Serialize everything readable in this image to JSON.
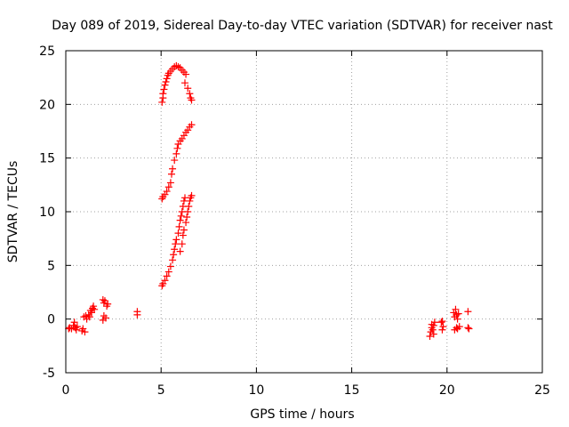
{
  "chart_data": {
    "type": "scatter",
    "title": "Day 089 of 2019, Sidereal Day-to-day VTEC variation (SDTVAR) for receiver nast",
    "xlabel": "GPS time / hours",
    "ylabel": "SDTVAR / TECUs",
    "xlim": [
      0,
      25
    ],
    "ylim": [
      -5,
      25
    ],
    "xticks": [
      0,
      5,
      10,
      15,
      20,
      25
    ],
    "yticks": [
      -5,
      0,
      5,
      10,
      15,
      20,
      25
    ],
    "grid": true,
    "marker": "plus",
    "colors": {
      "points": "#ff0000",
      "grid": "#a0a0a0",
      "axis": "#000000"
    },
    "series": [
      {
        "name": "SDTVAR",
        "points": [
          [
            0.15,
            -0.9
          ],
          [
            0.2,
            -0.8
          ],
          [
            0.3,
            -0.9
          ],
          [
            0.4,
            -0.6
          ],
          [
            0.45,
            -0.3
          ],
          [
            0.5,
            -0.8
          ],
          [
            0.55,
            -1.0
          ],
          [
            0.6,
            -0.7
          ],
          [
            0.85,
            -1.1
          ],
          [
            0.9,
            -0.9
          ],
          [
            0.95,
            0.2
          ],
          [
            1.0,
            -1.2
          ],
          [
            1.05,
            0.3
          ],
          [
            1.1,
            0.0
          ],
          [
            1.2,
            0.4
          ],
          [
            1.25,
            0.2
          ],
          [
            1.3,
            0.8
          ],
          [
            1.35,
            0.6
          ],
          [
            1.4,
            1.0
          ],
          [
            1.45,
            1.2
          ],
          [
            1.5,
            0.9
          ],
          [
            1.95,
            1.8
          ],
          [
            2.0,
            1.5
          ],
          [
            2.05,
            1.7
          ],
          [
            2.0,
            0.3
          ],
          [
            2.1,
            0.1
          ],
          [
            2.15,
            1.2
          ],
          [
            2.2,
            1.4
          ],
          [
            1.95,
            -0.1
          ],
          [
            3.75,
            0.4
          ],
          [
            3.75,
            0.7
          ],
          [
            5.05,
            20.2
          ],
          [
            5.1,
            20.6
          ],
          [
            5.1,
            21.0
          ],
          [
            5.15,
            21.4
          ],
          [
            5.2,
            21.8
          ],
          [
            5.25,
            22.1
          ],
          [
            5.3,
            22.4
          ],
          [
            5.35,
            22.7
          ],
          [
            5.4,
            22.9
          ],
          [
            5.5,
            23.1
          ],
          [
            5.6,
            23.3
          ],
          [
            5.7,
            23.5
          ],
          [
            5.8,
            23.6
          ],
          [
            5.9,
            23.5
          ],
          [
            6.0,
            23.4
          ],
          [
            6.1,
            23.2
          ],
          [
            6.2,
            23.0
          ],
          [
            6.3,
            22.8
          ],
          [
            6.25,
            22.0
          ],
          [
            6.4,
            21.5
          ],
          [
            6.5,
            21.0
          ],
          [
            6.55,
            20.6
          ],
          [
            6.6,
            20.4
          ],
          [
            5.05,
            11.2
          ],
          [
            5.1,
            11.4
          ],
          [
            5.2,
            11.6
          ],
          [
            5.3,
            11.9
          ],
          [
            5.4,
            12.3
          ],
          [
            5.5,
            12.7
          ],
          [
            5.55,
            13.5
          ],
          [
            5.6,
            14.0
          ],
          [
            5.7,
            14.8
          ],
          [
            5.8,
            15.4
          ],
          [
            5.85,
            15.9
          ],
          [
            5.9,
            16.3
          ],
          [
            6.0,
            16.6
          ],
          [
            6.1,
            16.8
          ],
          [
            6.2,
            17.1
          ],
          [
            6.3,
            17.4
          ],
          [
            6.4,
            17.6
          ],
          [
            6.5,
            17.9
          ],
          [
            6.6,
            18.1
          ],
          [
            5.05,
            3.1
          ],
          [
            5.1,
            3.3
          ],
          [
            5.2,
            3.6
          ],
          [
            5.3,
            4.0
          ],
          [
            5.4,
            4.4
          ],
          [
            5.5,
            4.9
          ],
          [
            5.6,
            5.5
          ],
          [
            5.65,
            6.0
          ],
          [
            5.7,
            6.5
          ],
          [
            5.75,
            7.0
          ],
          [
            5.8,
            7.4
          ],
          [
            5.9,
            8.0
          ],
          [
            5.95,
            8.6
          ],
          [
            6.0,
            9.2
          ],
          [
            6.05,
            9.6
          ],
          [
            6.1,
            10.0
          ],
          [
            6.15,
            10.5
          ],
          [
            6.2,
            11.0
          ],
          [
            6.25,
            11.3
          ],
          [
            6.0,
            6.3
          ],
          [
            6.1,
            7.0
          ],
          [
            6.15,
            7.8
          ],
          [
            6.2,
            8.3
          ],
          [
            6.3,
            9.0
          ],
          [
            6.35,
            9.5
          ],
          [
            6.4,
            10.0
          ],
          [
            6.45,
            10.5
          ],
          [
            6.5,
            11.0
          ],
          [
            6.55,
            11.3
          ],
          [
            6.6,
            11.5
          ],
          [
            19.1,
            -1.6
          ],
          [
            19.15,
            -1.2
          ],
          [
            19.2,
            -0.8
          ],
          [
            19.2,
            -0.5
          ],
          [
            19.25,
            -1.0
          ],
          [
            19.3,
            -1.4
          ],
          [
            19.3,
            -0.6
          ],
          [
            19.35,
            -0.3
          ],
          [
            19.7,
            -0.3
          ],
          [
            19.75,
            -1.0
          ],
          [
            19.8,
            -0.7
          ],
          [
            19.75,
            -0.2
          ],
          [
            20.35,
            0.6
          ],
          [
            20.4,
            0.2
          ],
          [
            20.45,
            0.9
          ],
          [
            20.5,
            0.4
          ],
          [
            20.55,
            0.0
          ],
          [
            20.6,
            0.5
          ],
          [
            20.4,
            -1.0
          ],
          [
            20.5,
            -0.8
          ],
          [
            20.55,
            -0.9
          ],
          [
            20.65,
            -0.7
          ],
          [
            21.1,
            -0.8
          ],
          [
            21.15,
            -0.9
          ],
          [
            21.1,
            0.7
          ]
        ]
      }
    ]
  }
}
